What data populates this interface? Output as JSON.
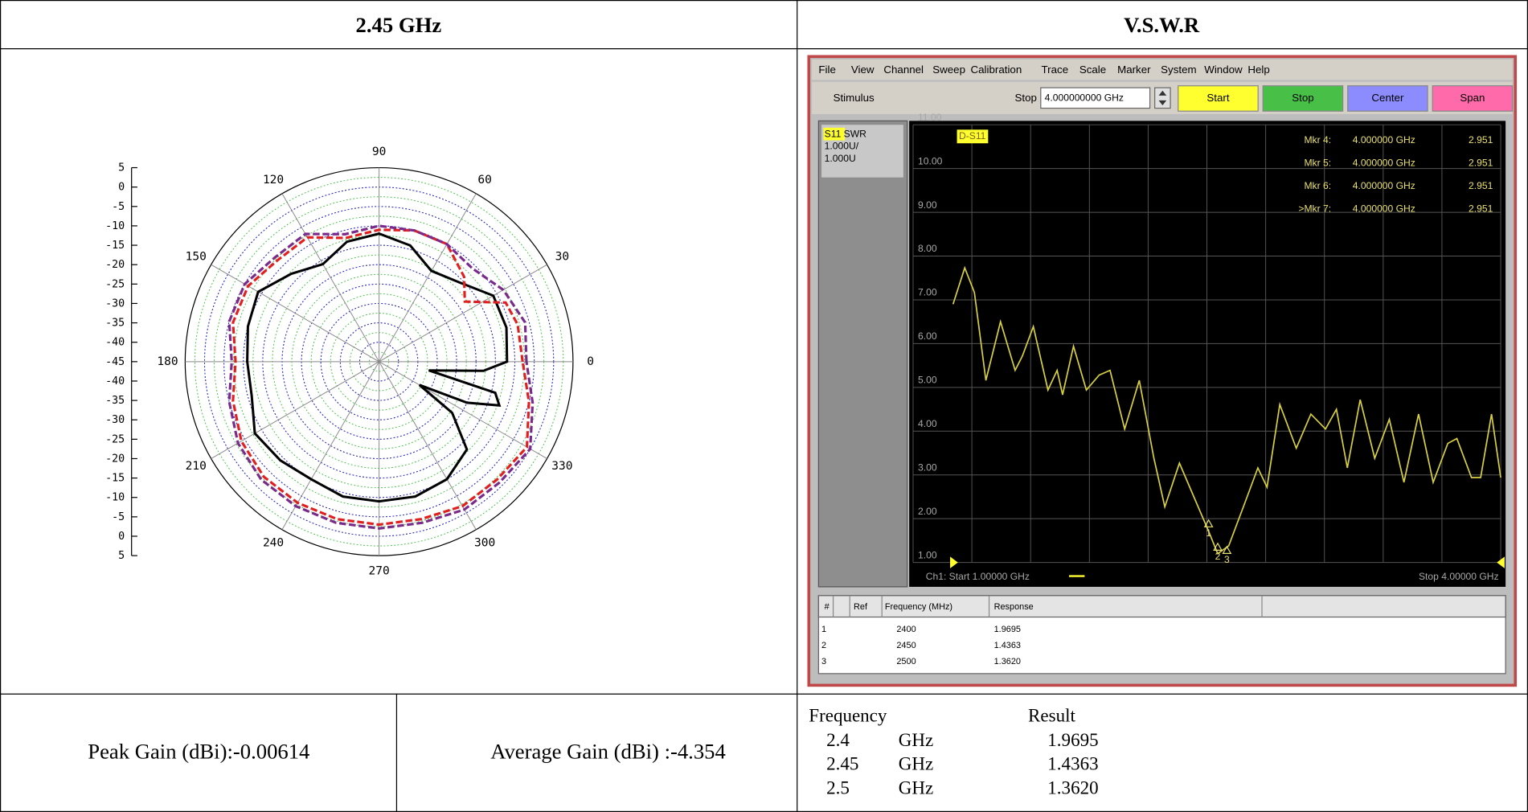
{
  "header": {
    "left": "2.45 GHz",
    "right": "V.S.W.R"
  },
  "gain": {
    "peak": "Peak Gain (dBi):-0.00614",
    "average": "Average Gain (dBi) :-4.354"
  },
  "results": {
    "headers": [
      "Frequency",
      "Result"
    ],
    "rows": [
      [
        "2.4",
        "GHz",
        "1.9695"
      ],
      [
        "2.45",
        "GHz",
        "1.4363"
      ],
      [
        "2.5",
        "GHz",
        "1.3620"
      ]
    ]
  },
  "analyzer": {
    "menu": [
      "File",
      "View",
      "Channel",
      "Sweep",
      "Calibration",
      "Trace",
      "Scale",
      "Marker",
      "System",
      "Window",
      "Help"
    ],
    "stimulus": "Stimulus",
    "stop_label": "Stop",
    "stop_value": "4.000000000 GHz",
    "buttons": [
      "Start",
      "Stop",
      "Center",
      "Span"
    ],
    "channel": [
      "S11 SWR",
      "1.000U/",
      "1.000U"
    ],
    "trace_label": "D-S11",
    "readouts": [
      [
        "Mkr 4:",
        "4.000000 GHz",
        "2.951"
      ],
      [
        "Mkr 5:",
        "4.000000 GHz",
        "2.951"
      ],
      [
        "Mkr 6:",
        "4.000000 GHz",
        "2.951"
      ],
      [
        ">Mkr 7:",
        "4.000000 GHz",
        "2.951"
      ]
    ],
    "start": "Ch1: Start  1.00000 GHz",
    "stop": "Stop  4.00000 GHz",
    "table": {
      "headers": [
        "#",
        "Ref",
        "Frequency (MHz)",
        "Response"
      ],
      "rows": [
        [
          "1",
          "2400",
          "1.9695"
        ],
        [
          "2",
          "2450",
          "1.4363"
        ],
        [
          "3",
          "2500",
          "1.3620"
        ]
      ]
    }
  },
  "chart_data": [
    {
      "type": "polar",
      "rlim": [
        -45,
        5
      ],
      "rticks": [
        5,
        0,
        -5,
        -10,
        -15,
        -20,
        -25,
        -30,
        -35,
        -40,
        -45
      ],
      "angle_ticks": [
        0,
        30,
        60,
        90,
        120,
        150,
        180,
        210,
        240,
        270,
        300,
        330
      ],
      "series": [
        {
          "color": "#000000",
          "style": "solid",
          "x": [
            0,
            15,
            30,
            45,
            60,
            75,
            90,
            105,
            120,
            135,
            150,
            165,
            180,
            195,
            210,
            225,
            240,
            255,
            270,
            285,
            300,
            315,
            325,
            330,
            335,
            340,
            345,
            350,
            355
          ],
          "values": [
            -12,
            -11,
            -11,
            -16,
            -18,
            -14,
            -12,
            -13,
            -16,
            -13,
            -9,
            -10,
            -11,
            -11,
            -8,
            -9,
            -10,
            -9,
            -9,
            -9,
            -10,
            -13,
            -22,
            -33,
            -20,
            -12,
            -14,
            -32,
            -18
          ]
        },
        {
          "color": "#e02020",
          "style": "dashed",
          "x": [
            0,
            15,
            25,
            35,
            45,
            60,
            75,
            90,
            105,
            120,
            135,
            150,
            165,
            180,
            195,
            210,
            225,
            240,
            255,
            270,
            285,
            300,
            315,
            330,
            345
          ],
          "values": [
            -8,
            -8,
            -9,
            -18,
            -14,
            -10,
            -10,
            -11,
            -12,
            -8,
            -8,
            -6,
            -6,
            -8,
            -6,
            -4,
            -3,
            -3,
            -3,
            -3,
            -3,
            -2,
            -2,
            -1,
            -5
          ]
        },
        {
          "color": "#7a2a8a",
          "style": "dashed",
          "x": [
            0,
            15,
            30,
            45,
            60,
            75,
            90,
            105,
            120,
            135,
            150,
            165,
            180,
            195,
            210,
            225,
            240,
            255,
            270,
            285,
            300,
            315,
            330,
            345
          ],
          "values": [
            -7,
            -6,
            -8,
            -11,
            -10,
            -10,
            -10,
            -11,
            -7,
            -7,
            -5,
            -5,
            -7,
            -5,
            -3,
            -2,
            -2,
            -2,
            -2,
            -2,
            -1,
            -1,
            0,
            -4
          ]
        }
      ]
    },
    {
      "type": "line",
      "xlim": [
        1,
        4
      ],
      "ylim": [
        1,
        11
      ],
      "yticks": [
        {
          "value": 11,
          "label": "11.00"
        },
        {
          "value": 10,
          "label": "10.00"
        },
        {
          "value": 9,
          "label": "9.00"
        },
        {
          "value": 8,
          "label": "8.00"
        },
        {
          "value": 7,
          "label": "7.00"
        },
        {
          "value": 6,
          "label": "6.00"
        },
        {
          "value": 5,
          "label": "5.00"
        },
        {
          "value": 4,
          "label": "4.00"
        },
        {
          "value": 3,
          "label": "3.00"
        },
        {
          "value": 2,
          "label": "2.00"
        },
        {
          "value": 1,
          "label": "1.00"
        }
      ],
      "grid": true,
      "x": [
        1.0,
        1.064,
        1.117,
        1.18,
        1.26,
        1.34,
        1.38,
        1.44,
        1.52,
        1.57,
        1.6,
        1.66,
        1.73,
        1.8,
        1.86,
        1.94,
        2.02,
        2.1,
        2.16,
        2.24,
        2.32,
        2.4,
        2.45,
        2.51,
        2.59,
        2.67,
        2.72,
        2.79,
        2.88,
        2.96,
        3.04,
        3.1,
        3.16,
        3.23,
        3.31,
        3.39,
        3.47,
        3.55,
        3.63,
        3.71,
        3.76,
        3.84,
        3.89,
        3.95,
        4.0
      ],
      "series": [
        {
          "color": "#d8d040",
          "values": [
            6.9,
            7.73,
            7.17,
            5.16,
            6.5,
            5.39,
            5.72,
            6.39,
            4.94,
            5.39,
            4.83,
            5.94,
            4.94,
            5.28,
            5.39,
            4.05,
            5.16,
            3.38,
            2.27,
            3.27,
            2.49,
            1.71,
            1.2,
            1.38,
            2.27,
            3.16,
            2.72,
            4.61,
            3.61,
            4.39,
            4.05,
            4.5,
            3.16,
            4.72,
            3.38,
            4.27,
            2.83,
            4.39,
            2.83,
            3.72,
            3.83,
            2.94,
            2.94,
            4.39,
            2.94
          ]
        }
      ],
      "markers": {
        "x": [
          2.4,
          2.45,
          2.5
        ],
        "values": [
          1.9695,
          1.4363,
          1.362
        ],
        "labels": [
          "1",
          "2",
          "3"
        ]
      }
    }
  ]
}
